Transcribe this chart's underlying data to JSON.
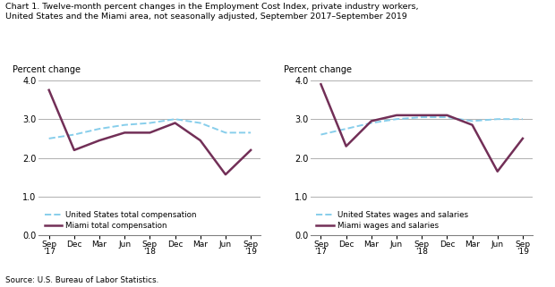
{
  "title_line1": "Chart 1. Twelve-month percent changes in the Employment Cost Index, private industry workers,",
  "title_line2": "United States and the Miami area, not seasonally adjusted, September 2017–September 2019",
  "source": "Source: U.S. Bureau of Labor Statistics.",
  "ylabel": "Percent change",
  "ylim": [
    0.0,
    4.0
  ],
  "yticks": [
    0.0,
    1.0,
    2.0,
    3.0,
    4.0
  ],
  "x_labels": [
    "Sep\n'17",
    "Dec",
    "Mar",
    "Jun",
    "Sep\n'18",
    "Dec",
    "Mar",
    "Jun",
    "Sep\n'19"
  ],
  "left_chart": {
    "us_total": [
      2.5,
      2.6,
      2.75,
      2.85,
      2.9,
      3.0,
      2.9,
      2.65,
      2.65
    ],
    "miami_total": [
      3.75,
      2.2,
      2.45,
      2.65,
      2.65,
      2.9,
      2.45,
      1.57,
      2.2
    ],
    "legend1": "United States total compensation",
    "legend2": "Miami total compensation"
  },
  "right_chart": {
    "us_wages": [
      2.6,
      2.75,
      2.9,
      3.0,
      3.05,
      3.05,
      2.95,
      3.0,
      3.0
    ],
    "miami_wages": [
      3.9,
      2.3,
      2.95,
      3.1,
      3.1,
      3.1,
      2.85,
      1.65,
      2.5
    ],
    "legend1": "United States wages and salaries",
    "legend2": "Miami wages and salaries"
  },
  "us_color": "#87CEEB",
  "miami_color": "#722F57",
  "us_linewidth": 1.4,
  "miami_linewidth": 1.8,
  "grid_color": "#b0b0b0",
  "bg_color": "#ffffff"
}
